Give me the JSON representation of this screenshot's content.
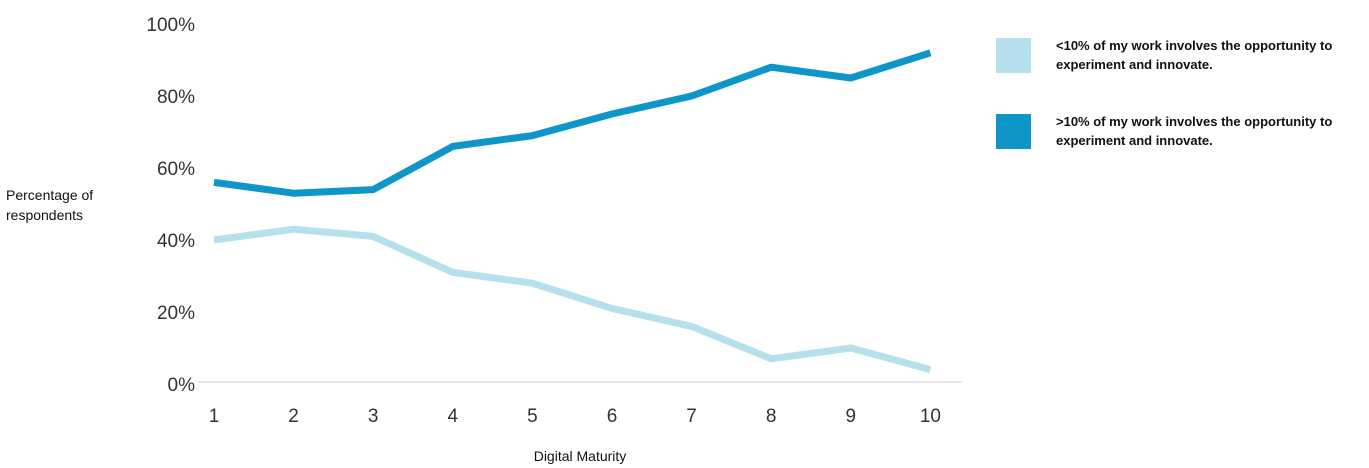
{
  "chart_data": {
    "type": "line",
    "title": "",
    "xlabel": "Digital Maturity",
    "ylabel": "Percentage of respondents",
    "categories": [
      "1",
      "2",
      "3",
      "4",
      "5",
      "6",
      "7",
      "8",
      "9",
      "10"
    ],
    "ylim": [
      0,
      100
    ],
    "yticks": [
      "0%",
      "20%",
      "40%",
      "60%",
      "80%",
      "100%"
    ],
    "ytick_values": [
      0,
      20,
      40,
      60,
      80,
      100
    ],
    "grid": false,
    "legend_position": "top-right",
    "series": [
      {
        "name": "<10% of my work involves the opportunity to experiment and innovate.",
        "color": "#b5e0ec",
        "values": [
          40,
          43,
          41,
          31,
          28,
          21,
          16,
          7,
          10,
          4
        ]
      },
      {
        "name": ">10% of my work involves the opportunity to experiment and innovate.",
        "color": "#0e96c8",
        "values": [
          56,
          53,
          54,
          66,
          69,
          75,
          80,
          88,
          85,
          92
        ]
      }
    ]
  }
}
